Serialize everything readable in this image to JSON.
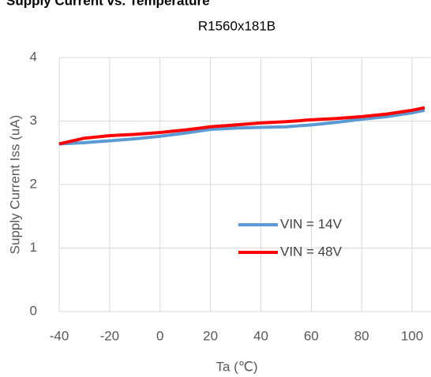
{
  "chart_data": {
    "type": "line",
    "title": "Supply Current vs. Temperature",
    "subtitle": "R1560x181B",
    "x_label": "Ta (℃)",
    "y_label": "Supply Current  Iss (uA)",
    "x": [
      -40,
      -30,
      -20,
      -10,
      0,
      10,
      20,
      30,
      40,
      50,
      60,
      70,
      80,
      90,
      100,
      105
    ],
    "series": [
      {
        "name": "VIN  = 14V",
        "color": "#5b9bd5",
        "values": [
          2.64,
          2.66,
          2.69,
          2.72,
          2.76,
          2.81,
          2.87,
          2.89,
          2.9,
          2.91,
          2.94,
          2.98,
          3.03,
          3.07,
          3.13,
          3.17
        ]
      },
      {
        "name": "VIN  = 48V",
        "color": "#ff0000",
        "values": [
          2.64,
          2.73,
          2.77,
          2.79,
          2.82,
          2.86,
          2.91,
          2.94,
          2.97,
          2.99,
          3.02,
          3.04,
          3.07,
          3.11,
          3.17,
          3.21
        ]
      }
    ],
    "xlim": [
      -40,
      105
    ],
    "xticks": [
      -40,
      -20,
      0,
      20,
      40,
      60,
      80,
      100
    ],
    "ylim": [
      0,
      4
    ],
    "yticks": [
      0,
      1,
      2,
      3,
      4
    ],
    "grid": true
  }
}
